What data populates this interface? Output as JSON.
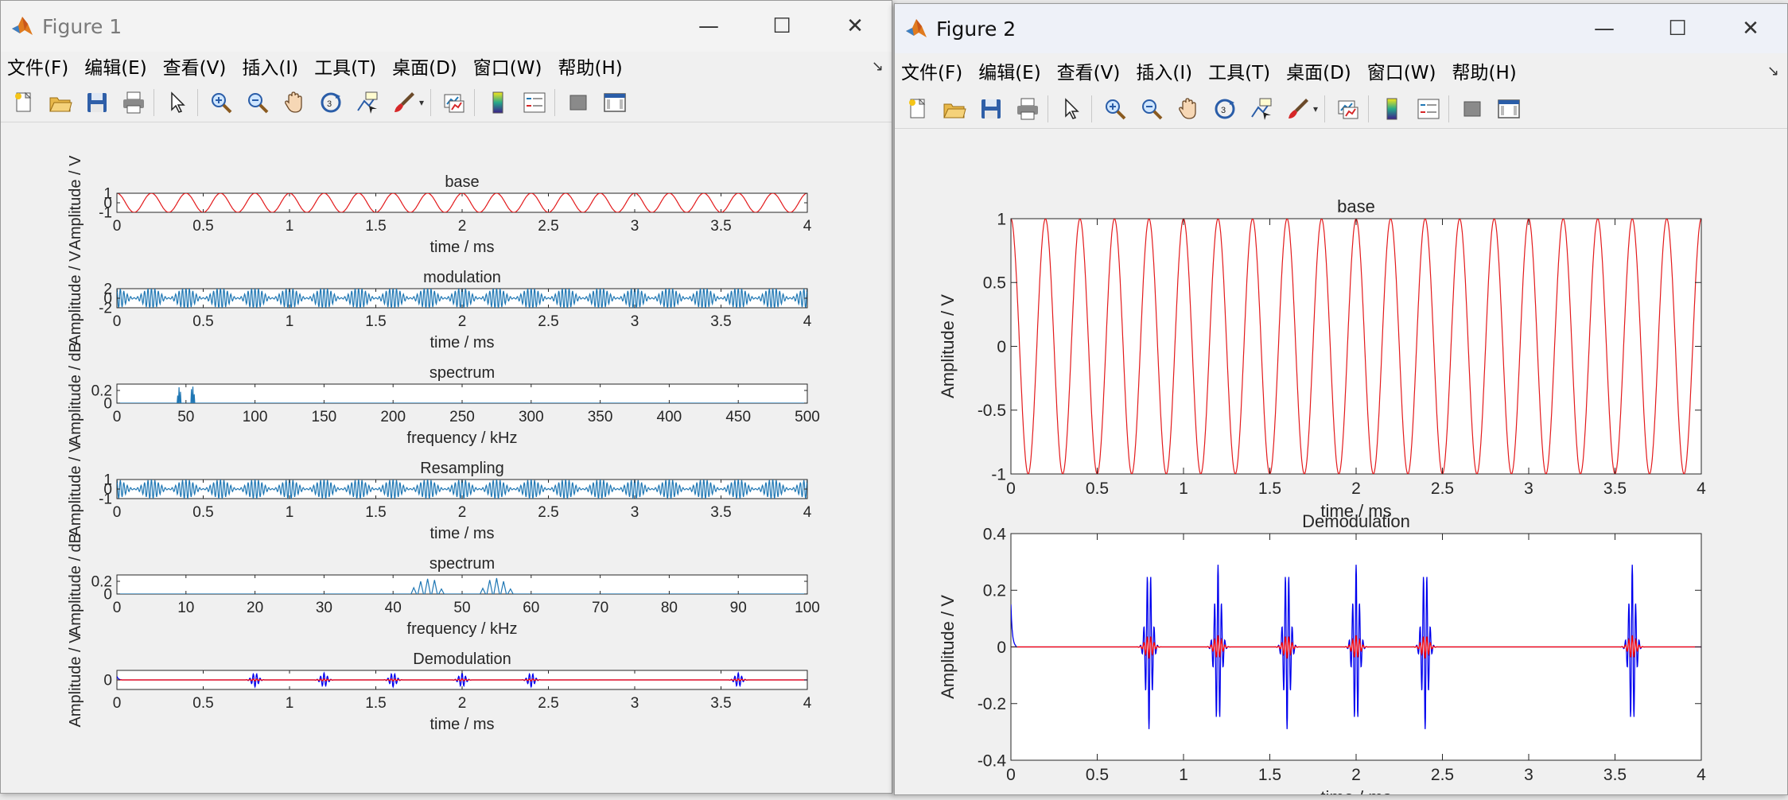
{
  "colors": {
    "base": "#e31a1c",
    "signal": "#1f77b4",
    "demod_blue": "#0000ee",
    "demod_red": "#ff0000"
  },
  "figure1": {
    "title": "Figure 1",
    "controls": {
      "minimize": "—",
      "maximize": "☐",
      "close": "✕"
    },
    "menu": [
      "文件(F)",
      "编辑(E)",
      "查看(V)",
      "插入(I)",
      "工具(T)",
      "桌面(D)",
      "窗口(W)",
      "帮助(H)"
    ],
    "toolbar": [
      "new-figure-icon",
      "open-icon",
      "save-icon",
      "print-icon",
      "pointer-icon",
      "zoom-in-icon",
      "zoom-out-icon",
      "pan-hand-icon",
      "rotate-3d-icon",
      "data-cursor-icon",
      "brush-icon",
      "link-plot-icon",
      "colorbar-icon",
      "legend-icon",
      "hide-plot-tools-icon",
      "show-plot-tools-icon"
    ],
    "chart_data": [
      {
        "type": "line",
        "title": "base",
        "xlabel": "time / ms",
        "ylabel": "Amplitude / V",
        "xlim": [
          0,
          4
        ],
        "ylim": [
          -1,
          1
        ],
        "xticks": [
          "0",
          "0.5",
          "1",
          "1.5",
          "2",
          "2.5",
          "3",
          "3.5",
          "4"
        ],
        "yticks": [
          "-1",
          "0",
          "1"
        ],
        "signal": {
          "kind": "sine",
          "frequency_khz": 5,
          "amplitude": 1
        },
        "series": []
      },
      {
        "type": "line",
        "title": "modulation",
        "xlabel": "time / ms",
        "ylabel": "Amplitude / V",
        "xlim": [
          0,
          4
        ],
        "ylim": [
          -2,
          2
        ],
        "xticks": [
          "0",
          "0.5",
          "1",
          "1.5",
          "2",
          "2.5",
          "3",
          "3.5",
          "4"
        ],
        "yticks": [
          "-2",
          "0",
          "2"
        ],
        "signal": {
          "kind": "am",
          "carrier_khz": 50,
          "mod_khz": 5,
          "amplitude": 1
        },
        "series": []
      },
      {
        "type": "line",
        "title": "spectrum",
        "xlabel": "frequency / kHz",
        "ylabel": "Amplitude / dB",
        "xlim": [
          0,
          500
        ],
        "ylim": [
          0,
          0.3
        ],
        "xticks": [
          "0",
          "50",
          "100",
          "150",
          "200",
          "250",
          "300",
          "350",
          "400",
          "450",
          "500"
        ],
        "yticks": [
          "0",
          "0.2"
        ],
        "peaks": [
          [
            44,
            0.12
          ],
          [
            45,
            0.25
          ],
          [
            46,
            0.18
          ],
          [
            54,
            0.22
          ],
          [
            55,
            0.26
          ],
          [
            56,
            0.14
          ]
        ],
        "series": []
      },
      {
        "type": "line",
        "title": "Resampling",
        "xlabel": "time / ms",
        "ylabel": "Amplitude / V",
        "xlim": [
          0,
          4
        ],
        "ylim": [
          -1,
          1
        ],
        "xticks": [
          "0",
          "0.5",
          "1",
          "1.5",
          "2",
          "2.5",
          "3",
          "3.5",
          "4"
        ],
        "yticks": [
          "-1",
          "0",
          "1"
        ],
        "signal": {
          "kind": "am",
          "carrier_khz": 50,
          "mod_khz": 5,
          "amplitude": 0.6
        },
        "series": []
      },
      {
        "type": "line",
        "title": "spectrum",
        "xlabel": "frequency / kHz",
        "ylabel": "Amplitude / dB",
        "xlim": [
          0,
          100
        ],
        "ylim": [
          0,
          0.3
        ],
        "xticks": [
          "0",
          "10",
          "20",
          "30",
          "40",
          "50",
          "60",
          "70",
          "80",
          "90",
          "100"
        ],
        "yticks": [
          "0",
          "0.2"
        ],
        "peaks": [
          [
            43,
            0.1
          ],
          [
            44,
            0.2
          ],
          [
            45,
            0.24
          ],
          [
            46,
            0.22
          ],
          [
            47,
            0.08
          ],
          [
            53,
            0.09
          ],
          [
            54,
            0.22
          ],
          [
            55,
            0.25
          ],
          [
            56,
            0.2
          ],
          [
            57,
            0.08
          ]
        ],
        "series": []
      },
      {
        "type": "line",
        "title": "Demodulation",
        "xlabel": "time / ms",
        "ylabel": "Amplitude / V",
        "xlim": [
          0,
          4
        ],
        "ylim": [
          -0.4,
          0.4
        ],
        "xticks": [
          "0",
          "0.5",
          "1",
          "1.5",
          "2",
          "2.5",
          "3",
          "3.5",
          "4"
        ],
        "yticks": [
          "0"
        ],
        "pulses": [
          [
            0.8,
            -0.29
          ],
          [
            1.2,
            0.29
          ],
          [
            1.6,
            -0.29
          ],
          [
            2.0,
            0.29
          ],
          [
            2.4,
            -0.29
          ],
          [
            3.6,
            0.29
          ]
        ],
        "series": []
      }
    ]
  },
  "figure2": {
    "title": "Figure 2",
    "controls": {
      "minimize": "—",
      "maximize": "☐",
      "close": "✕"
    },
    "menu": [
      "文件(F)",
      "编辑(E)",
      "查看(V)",
      "插入(I)",
      "工具(T)",
      "桌面(D)",
      "窗口(W)",
      "帮助(H)"
    ],
    "toolbar": [
      "new-figure-icon",
      "open-icon",
      "save-icon",
      "print-icon",
      "pointer-icon",
      "zoom-in-icon",
      "zoom-out-icon",
      "pan-hand-icon",
      "rotate-3d-icon",
      "data-cursor-icon",
      "brush-icon",
      "link-plot-icon",
      "colorbar-icon",
      "legend-icon",
      "hide-plot-tools-icon",
      "show-plot-tools-icon"
    ],
    "chart_data": [
      {
        "type": "line",
        "title": "base",
        "xlabel": "time / ms",
        "ylabel": "Amplitude / V",
        "xlim": [
          0,
          4
        ],
        "ylim": [
          -1,
          1
        ],
        "xticks": [
          "0",
          "0.5",
          "1",
          "1.5",
          "2",
          "2.5",
          "3",
          "3.5",
          "4"
        ],
        "yticks": [
          "-1",
          "-0.5",
          "0",
          "0.5",
          "1"
        ],
        "signal": {
          "kind": "sine",
          "frequency_khz": 5,
          "amplitude": 1
        },
        "series": []
      },
      {
        "type": "line",
        "title": "Demodulation",
        "xlabel": "time / ms",
        "ylabel": "Amplitude / V",
        "xlim": [
          0,
          4
        ],
        "ylim": [
          -0.4,
          0.4
        ],
        "xticks": [
          "0",
          "0.5",
          "1",
          "1.5",
          "2",
          "2.5",
          "3",
          "3.5",
          "4"
        ],
        "yticks": [
          "-0.4",
          "-0.2",
          "0",
          "0.2",
          "0.4"
        ],
        "pulses": [
          [
            0.8,
            -0.29
          ],
          [
            1.2,
            0.29
          ],
          [
            1.6,
            -0.29
          ],
          [
            2.0,
            0.29
          ],
          [
            2.4,
            -0.29
          ],
          [
            3.6,
            0.29
          ]
        ],
        "series": []
      }
    ]
  }
}
